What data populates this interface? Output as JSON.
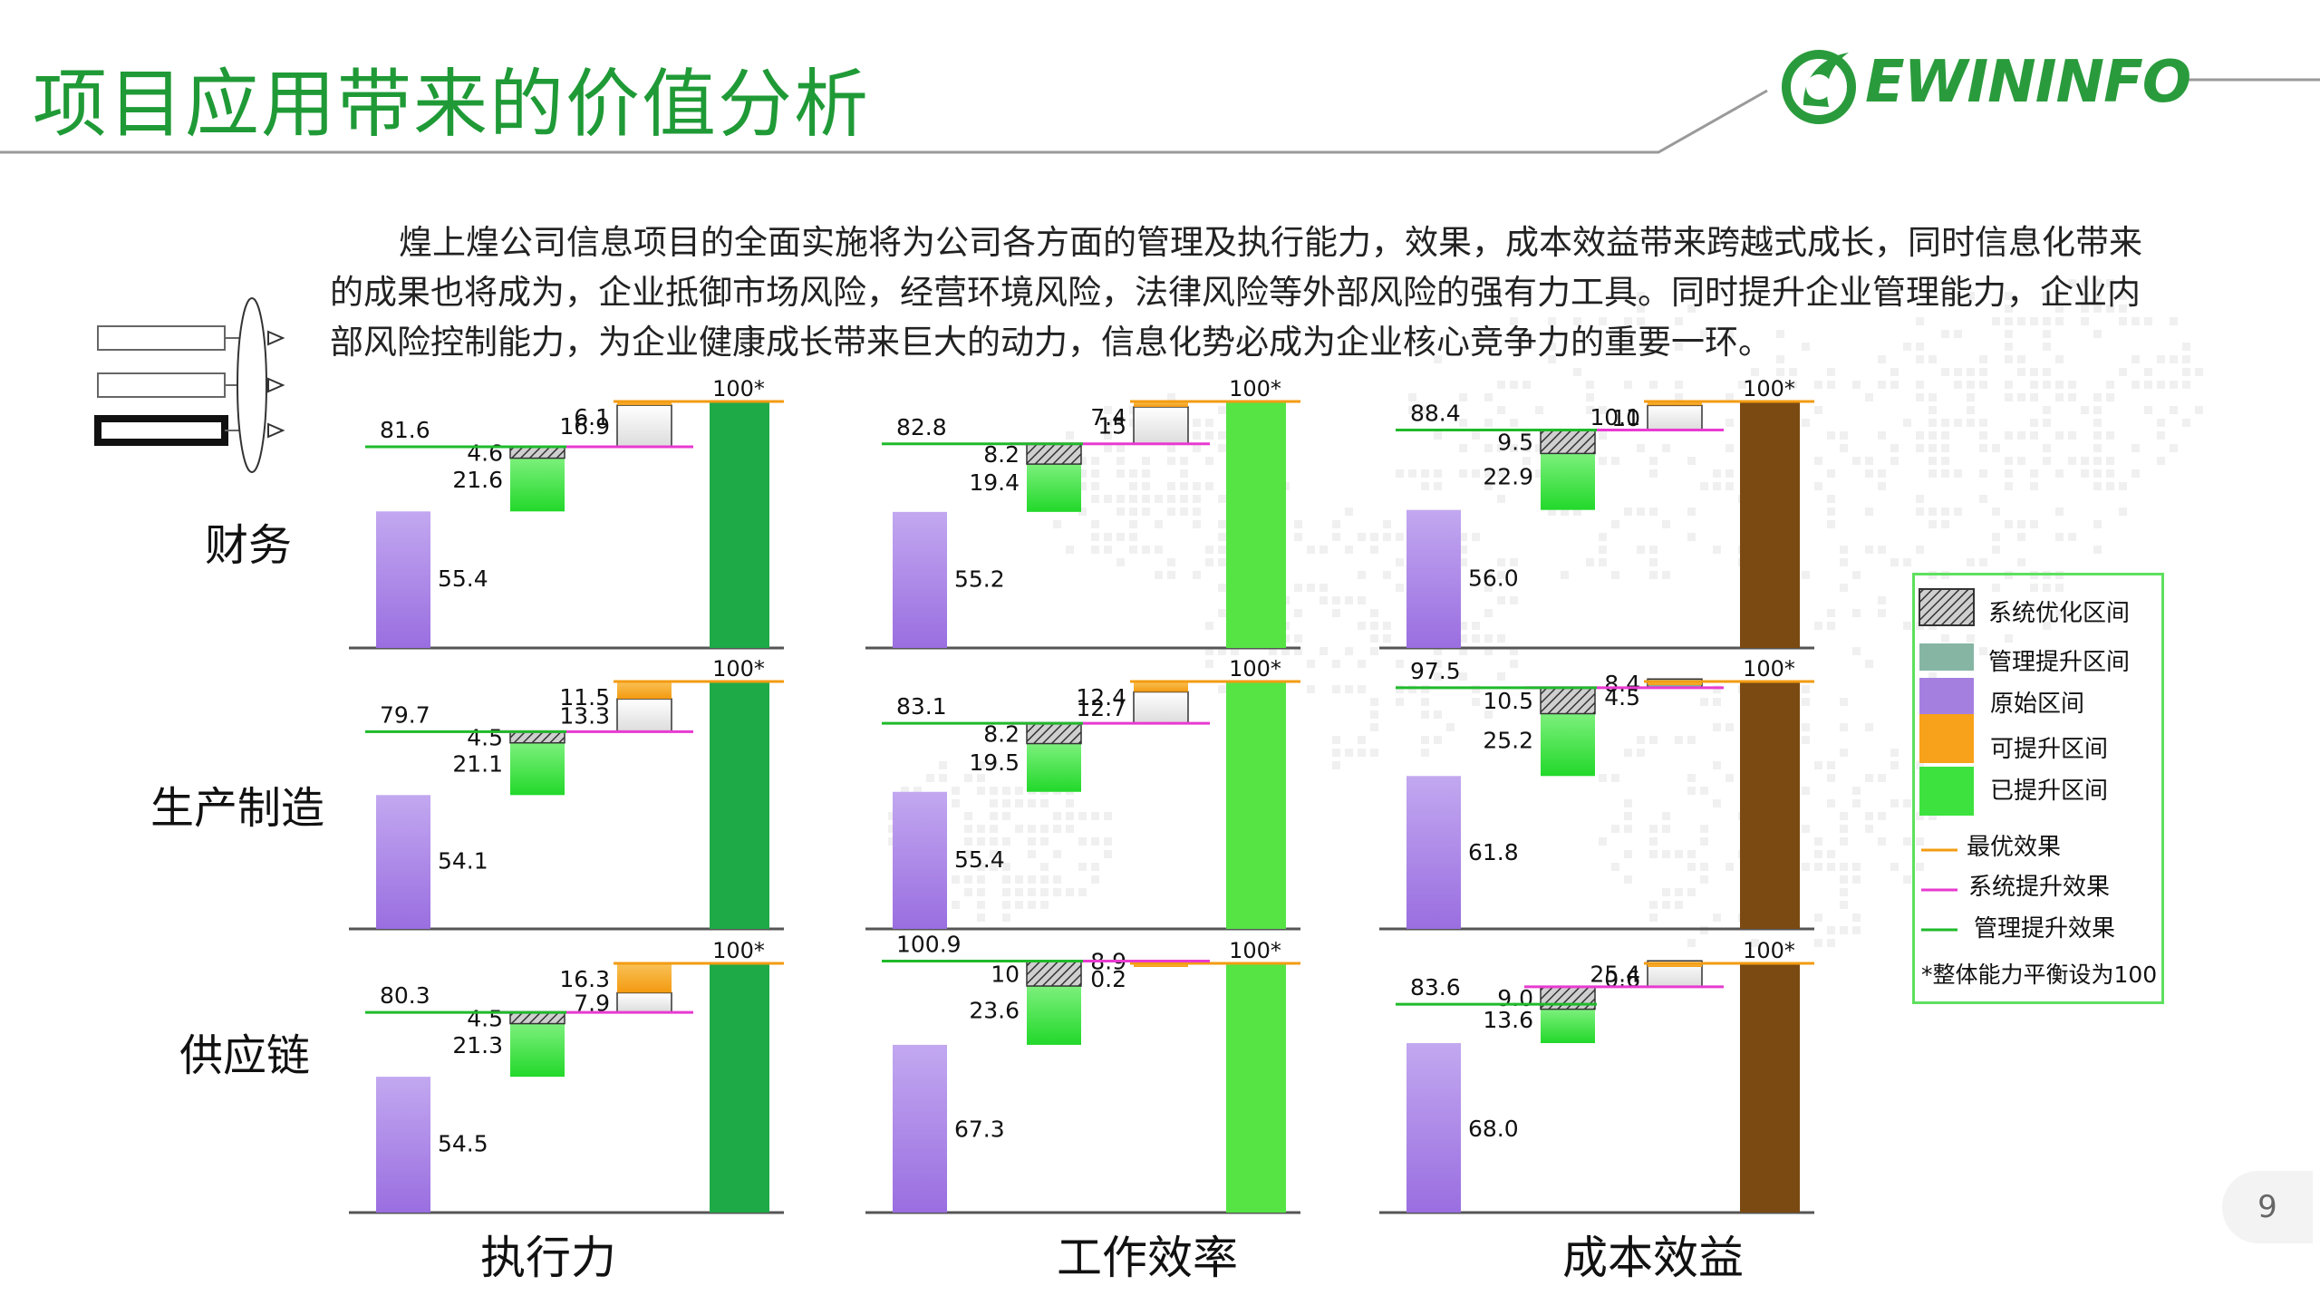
{
  "slide": {
    "title": "项目应用带来的价值分析",
    "logo_text": "EWININFO",
    "intro": "煌上煌公司信息项目的全面实施将为公司各方面的管理及执行能力，效果，成本效益带来跨越式成长，同时信息化带来的成果也将成为，企业抵御市场风险，经营环境风险，法律风险等外部风险的强有力工具。同时提升企业管理能力，企业内部风险控制能力，为企业健康成长带来巨大的动力，信息化势必成为企业核心竞争力的重要一环。",
    "page_number": "9",
    "row_labels": [
      "财务",
      "生产制造",
      "供应链"
    ],
    "col_labels": [
      "执行力",
      "工作效率",
      "成本效益"
    ]
  },
  "legend": {
    "items": [
      {
        "label": "系统优化区间",
        "swatch": "hatch"
      },
      {
        "label": "管理提升区间",
        "swatch": "#86b5a4"
      },
      {
        "label": "原始区间",
        "swatch": "#a57fe0"
      },
      {
        "label": "可提升区间",
        "swatch": "#f7a21a"
      },
      {
        "label": "已提升区间",
        "swatch": "#3ee23e"
      },
      {
        "label": "最优效果",
        "swatch": "line:#f39c12"
      },
      {
        "label": "系统提升效果",
        "swatch": "line:#e83ad0"
      },
      {
        "label": "管理提升效果",
        "swatch": "line:#1fba2a"
      }
    ],
    "note": "*整体能力平衡设为100"
  },
  "chart_data": [
    {
      "type": "bar",
      "row": "财务",
      "column": "执行力",
      "full_label": "100*",
      "full_color": "#1faa48",
      "original": "55.4",
      "improved": "21.6",
      "mgmt_line": "81.6",
      "mgmt_gap": "4.6",
      "mgmt_gap_kind": "system",
      "system_gap": "16.9",
      "system_gap_kind": "white",
      "remaining": "6.1",
      "remaining_kind": "orange"
    },
    {
      "type": "bar",
      "row": "财务",
      "column": "工作效率",
      "full_label": "100*",
      "full_color": "#55e444",
      "original": "55.2",
      "improved": "19.4",
      "mgmt_line": "82.8",
      "mgmt_gap": "8.2",
      "mgmt_gap_kind": "system",
      "system_gap": "15",
      "system_gap_kind": "white",
      "remaining": "7.4",
      "remaining_kind": "orange"
    },
    {
      "type": "bar",
      "row": "财务",
      "column": "成本效益",
      "full_label": "100*",
      "full_color": "#7a4a12",
      "original": "56.0",
      "improved": "22.9",
      "mgmt_line": "88.4",
      "mgmt_gap": "9.5",
      "mgmt_gap_kind": "system",
      "system_gap": "10",
      "system_gap_kind": "white",
      "remaining": "10.1",
      "remaining_kind": "orange"
    },
    {
      "type": "bar",
      "row": "生产制造",
      "column": "执行力",
      "full_label": "100*",
      "full_color": "#1faa48",
      "original": "54.1",
      "improved": "21.1",
      "mgmt_line": "79.7",
      "mgmt_gap": "4.5",
      "mgmt_gap_kind": "system",
      "system_gap": "13.3",
      "system_gap_kind": "white",
      "remaining": "11.5",
      "remaining_kind": "orange"
    },
    {
      "type": "bar",
      "row": "生产制造",
      "column": "工作效率",
      "full_label": "100*",
      "full_color": "#55e444",
      "original": "55.4",
      "improved": "19.5",
      "mgmt_line": "83.1",
      "mgmt_gap": "8.2",
      "mgmt_gap_kind": "system",
      "system_gap": "12.7",
      "system_gap_kind": "white",
      "remaining": "12.4",
      "remaining_kind": "orange"
    },
    {
      "type": "bar",
      "row": "生产制造",
      "column": "成本效益",
      "full_label": "100*",
      "full_color": "#7a4a12",
      "original": "61.8",
      "improved": "25.2",
      "mgmt_line": "97.5",
      "mgmt_gap": "10.5",
      "mgmt_gap_kind": "system",
      "system_gap": "8.4",
      "system_gap_kind": "teal",
      "remaining": "4.5",
      "remaining_kind": "orange"
    },
    {
      "type": "bar",
      "row": "供应链",
      "column": "执行力",
      "full_label": "100*",
      "full_color": "#1faa48",
      "original": "54.5",
      "improved": "21.3",
      "mgmt_line": "80.3",
      "mgmt_gap": "4.5",
      "mgmt_gap_kind": "system",
      "system_gap": "7.9",
      "system_gap_kind": "white",
      "remaining": "16.3",
      "remaining_kind": "orange"
    },
    {
      "type": "bar",
      "row": "供应链",
      "column": "工作效率",
      "full_label": "100*",
      "full_color": "#55e444",
      "original": "67.3",
      "improved": "23.6",
      "mgmt_line": "100.9",
      "mgmt_gap": "10",
      "mgmt_gap_kind": "system",
      "system_gap": "8.9",
      "system_gap_kind": "teal",
      "remaining": "0.2",
      "remaining_kind": "orange"
    },
    {
      "type": "bar",
      "row": "供应链",
      "column": "成本效益",
      "full_label": "100*",
      "full_color": "#7a4a12",
      "original": "68.0",
      "improved": "13.6",
      "mgmt_line": "83.6",
      "mgmt_gap": "9.0",
      "mgmt_gap_kind": "system",
      "system_gap": "25.4",
      "system_gap_kind": "white",
      "remaining": "0.6",
      "remaining_kind": "orange"
    }
  ]
}
